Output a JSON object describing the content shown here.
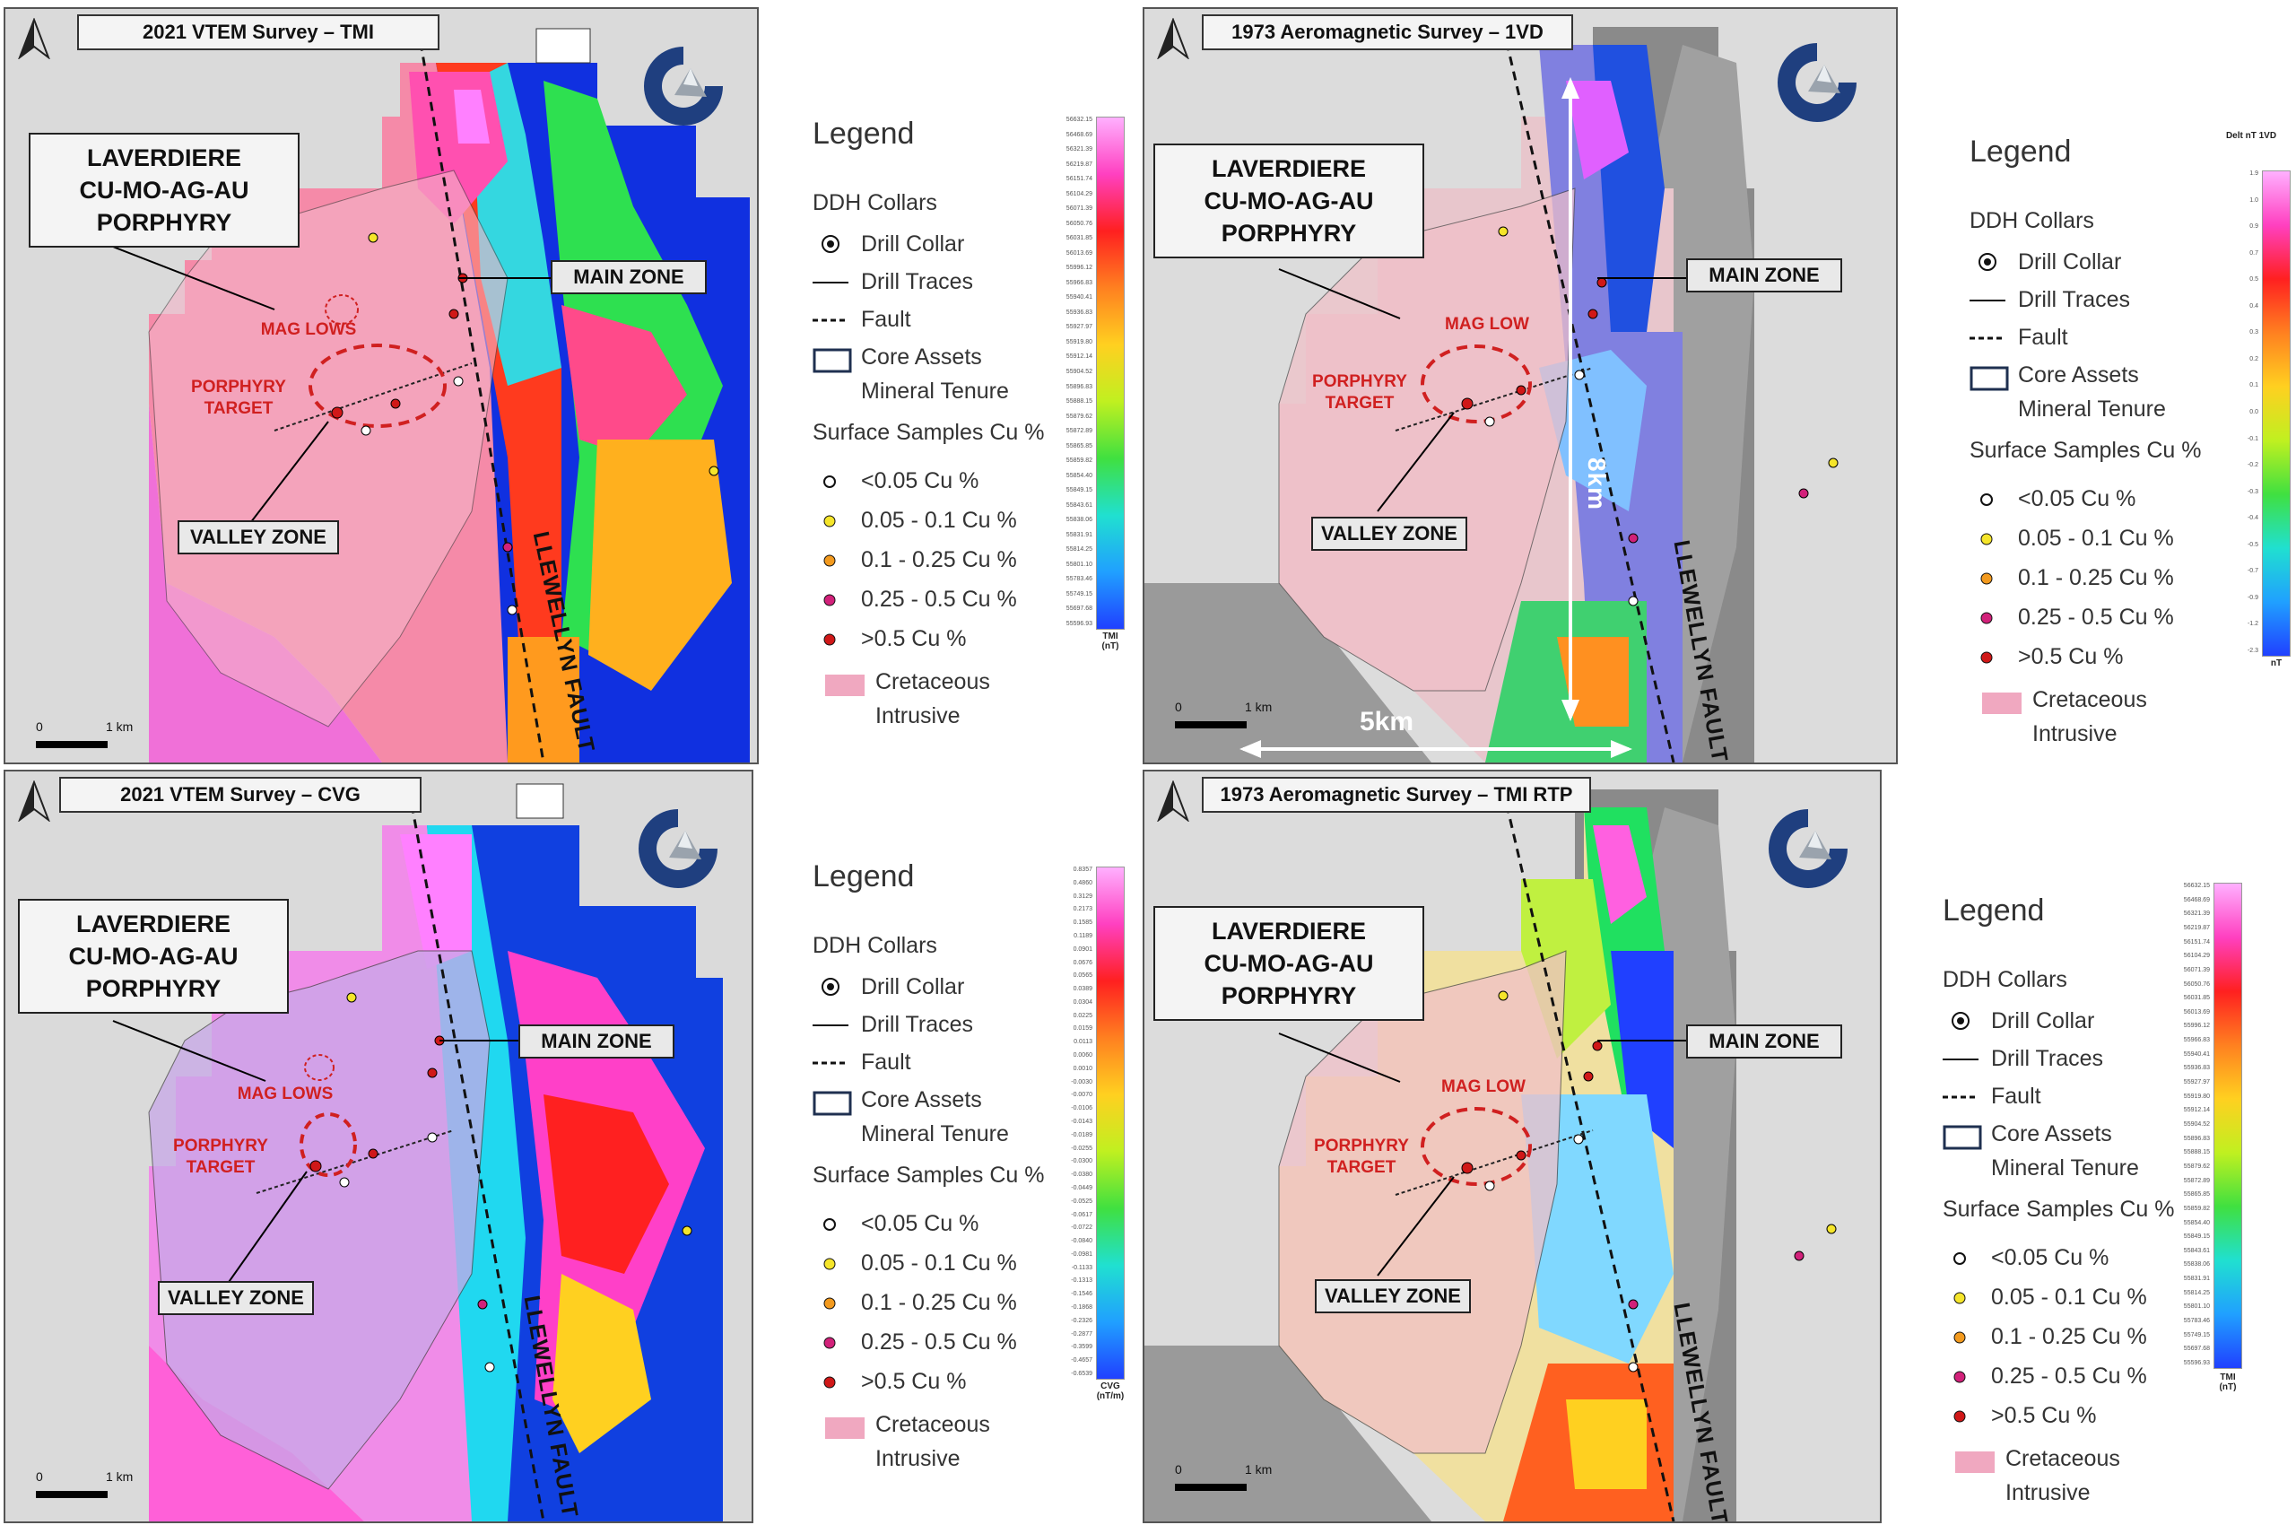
{
  "panels": [
    {
      "id": "tmi",
      "title": "2021 VTEM Survey – TMI",
      "callout": [
        "LAVERDIERE",
        "CU-MO-AG-AU",
        "PORPHYRY"
      ],
      "main_zone": "MAIN ZONE",
      "valley_zone": "VALLEY ZONE",
      "mag_label": "MAG LOWS",
      "porphyry_target": [
        "PORPHYRY",
        "TARGET"
      ],
      "fault": "LLEWELLYN FAULT",
      "scale": [
        "0",
        "1 km"
      ],
      "legend": {
        "title": "Legend",
        "ddh": "DDH Collars",
        "drill_collar": "Drill Collar",
        "drill_traces": "Drill Traces",
        "fault": "Fault",
        "core_assets": "Core Assets",
        "mineral_tenure": "Mineral Tenure",
        "surface_samples": "Surface Samples Cu %",
        "samples": [
          "<0.05 Cu %",
          "0.05 - 0.1 Cu %",
          "0.1 - 0.25 Cu %",
          "0.25 - 0.5 Cu %",
          ">0.5 Cu %"
        ],
        "cretaceous": "Cretaceous",
        "intrusive": "Intrusive"
      },
      "colorbar": {
        "ticks": [
          "56632.15",
          "56468.69",
          "56321.39",
          "56219.87",
          "56151.74",
          "56104.29",
          "56071.39",
          "56050.76",
          "56031.85",
          "56013.69",
          "55996.12",
          "55966.83",
          "55940.41",
          "55936.83",
          "55927.97",
          "55919.80",
          "55912.14",
          "55904.52",
          "55896.83",
          "55888.15",
          "55879.62",
          "55872.89",
          "55865.85",
          "55859.82",
          "55854.40",
          "55849.15",
          "55843.61",
          "55838.06",
          "55831.91",
          "55814.25",
          "55801.10",
          "55783.46",
          "55749.15",
          "55697.68",
          "55596.93"
        ],
        "unit": [
          "TMI",
          "(nT)"
        ]
      }
    },
    {
      "id": "1vd",
      "title": "1973 Aeromagnetic Survey – 1VD",
      "callout": [
        "LAVERDIERE",
        "CU-MO-AG-AU",
        "PORPHYRY"
      ],
      "main_zone": "MAIN ZONE",
      "valley_zone": "VALLEY ZONE",
      "mag_label": "MAG LOW",
      "porphyry_target": [
        "PORPHYRY",
        "TARGET"
      ],
      "fault": "LLEWELLYN FAULT",
      "scale": [
        "0",
        "1 km"
      ],
      "dim_vertical": "8km",
      "dim_horizontal": "5km",
      "legend": {
        "title": "Legend",
        "ddh": "DDH Collars",
        "drill_collar": "Drill Collar",
        "drill_traces": "Drill Traces",
        "fault": "Fault",
        "core_assets": "Core Assets",
        "mineral_tenure": "Mineral Tenure",
        "surface_samples": "Surface Samples Cu %",
        "samples": [
          "<0.05 Cu %",
          "0.05 - 0.1 Cu %",
          "0.1 - 0.25 Cu %",
          "0.25 - 0.5 Cu %",
          ">0.5 Cu %"
        ],
        "cretaceous": "Cretaceous",
        "intrusive": "Intrusive"
      },
      "colorbar": {
        "header": "Delt nT 1VD",
        "ticks": [
          "1.9",
          "1.0",
          "0.9",
          "0.7",
          "0.5",
          "0.4",
          "0.3",
          "0.2",
          "0.1",
          "0.0",
          "-0.1",
          "-0.2",
          "-0.3",
          "-0.4",
          "-0.5",
          "-0.7",
          "-0.9",
          "-1.2",
          "-2.3"
        ],
        "unit": [
          "nT"
        ]
      }
    },
    {
      "id": "cvg",
      "title": "2021 VTEM Survey – CVG",
      "callout": [
        "LAVERDIERE",
        "CU-MO-AG-AU",
        "PORPHYRY"
      ],
      "main_zone": "MAIN ZONE",
      "valley_zone": "VALLEY ZONE",
      "mag_label": "MAG LOWS",
      "porphyry_target": [
        "PORPHYRY",
        "TARGET"
      ],
      "fault": "LLEWELLYN FAULT",
      "scale": [
        "0",
        "1 km"
      ],
      "legend": {
        "title": "Legend",
        "ddh": "DDH Collars",
        "drill_collar": "Drill Collar",
        "drill_traces": "Drill Traces",
        "fault": "Fault",
        "core_assets": "Core Assets",
        "mineral_tenure": "Mineral Tenure",
        "surface_samples": "Surface Samples Cu %",
        "samples": [
          "<0.05 Cu %",
          "0.05 - 0.1 Cu %",
          "0.1 - 0.25 Cu %",
          "0.25 - 0.5 Cu %",
          ">0.5 Cu %"
        ],
        "cretaceous": "Cretaceous",
        "intrusive": "Intrusive"
      },
      "colorbar": {
        "ticks": [
          "0.8357",
          "0.4860",
          "0.3129",
          "0.2173",
          "0.1585",
          "0.1189",
          "0.0901",
          "0.0676",
          "0.0565",
          "0.0389",
          "0.0304",
          "0.0225",
          "0.0159",
          "0.0113",
          "0.0060",
          "0.0010",
          "-0.0030",
          "-0.0070",
          "-0.0106",
          "-0.0143",
          "-0.0189",
          "-0.0255",
          "-0.0300",
          "-0.0380",
          "-0.0449",
          "-0.0525",
          "-0.0617",
          "-0.0722",
          "-0.0840",
          "-0.0981",
          "-0.1133",
          "-0.1313",
          "-0.1546",
          "-0.1868",
          "-0.2326",
          "-0.2877",
          "-0.3599",
          "-0.4657",
          "-0.6539"
        ],
        "unit": [
          "CVG",
          "(nT/m)"
        ]
      }
    },
    {
      "id": "rtp",
      "title": "1973 Aeromagnetic Survey – TMI RTP",
      "callout": [
        "LAVERDIERE",
        "CU-MO-AG-AU",
        "PORPHYRY"
      ],
      "main_zone": "MAIN ZONE",
      "valley_zone": "VALLEY ZONE",
      "mag_label": "MAG LOW",
      "porphyry_target": [
        "PORPHYRY",
        "TARGET"
      ],
      "fault": "LLEWELLYN FAULT",
      "scale": [
        "0",
        "1 km"
      ],
      "legend": {
        "title": "Legend",
        "ddh": "DDH Collars",
        "drill_collar": "Drill Collar",
        "drill_traces": "Drill Traces",
        "fault": "Fault",
        "core_assets": "Core Assets",
        "mineral_tenure": "Mineral Tenure",
        "surface_samples": "Surface Samples Cu %",
        "samples": [
          "<0.05 Cu %",
          "0.05 - 0.1 Cu %",
          "0.1 - 0.25 Cu %",
          "0.25 - 0.5 Cu %",
          ">0.5 Cu %"
        ],
        "cretaceous": "Cretaceous",
        "intrusive": "Intrusive"
      },
      "colorbar": {
        "ticks": [
          "56632.15",
          "56468.69",
          "56321.39",
          "56219.87",
          "56151.74",
          "56104.29",
          "56071.39",
          "56050.76",
          "56031.85",
          "56013.69",
          "55996.12",
          "55966.83",
          "55940.41",
          "55936.83",
          "55927.97",
          "55919.80",
          "55912.14",
          "55904.52",
          "55896.83",
          "55888.15",
          "55879.62",
          "55872.89",
          "55865.85",
          "55859.82",
          "55854.40",
          "55849.15",
          "55843.61",
          "55838.06",
          "55831.91",
          "55814.25",
          "55801.10",
          "55783.46",
          "55749.15",
          "55697.68",
          "55596.93"
        ],
        "unit": [
          "TMI",
          "(nT)"
        ]
      }
    }
  ],
  "colors": {
    "sample_low": "#ffffff",
    "sample_005": "#f5e52a",
    "sample_01": "#f39a1e",
    "sample_025": "#d2217a",
    "sample_05": "#d01818",
    "cretaceous": "#f0a8c0",
    "logo_blue": "#1f3f7f",
    "target_red": "#d02020"
  }
}
